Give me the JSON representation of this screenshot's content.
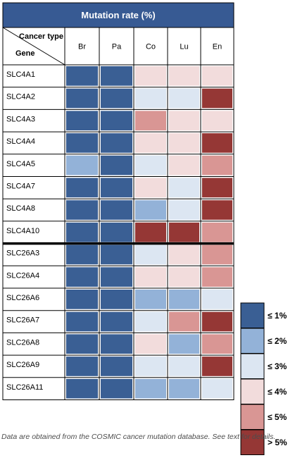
{
  "chart_data": {
    "type": "heatmap",
    "title": "Mutation rate (%)",
    "column_header_label": "Cancer type",
    "row_header_label": "Gene",
    "columns": [
      "Br",
      "Pa",
      "Co",
      "Lu",
      "En"
    ],
    "rows": [
      "SLC4A1",
      "SLC4A2",
      "SLC4A3",
      "SLC4A4",
      "SLC4A5",
      "SLC4A7",
      "SLC4A8",
      "SLC4A10",
      "SLC26A3",
      "SLC26A4",
      "SLC26A6",
      "SLC26A7",
      "SLC26A8",
      "SLC26A9",
      "SLC26A11"
    ],
    "group_separator_after_row": "SLC4A10",
    "categories": [
      "≤ 1%",
      "≤ 2%",
      "≤ 3%",
      "≤ 4%",
      "≤ 5%",
      "> 5%"
    ],
    "category_colors": [
      "#3a5f94",
      "#93b2d8",
      "#dce6f2",
      "#f2dcdc",
      "#d99694",
      "#953735"
    ],
    "values": [
      [
        0,
        0,
        3,
        3,
        3
      ],
      [
        0,
        0,
        2,
        2,
        5
      ],
      [
        0,
        0,
        4,
        3,
        3
      ],
      [
        0,
        0,
        3,
        3,
        5
      ],
      [
        1,
        0,
        2,
        3,
        4
      ],
      [
        0,
        0,
        3,
        2,
        5
      ],
      [
        0,
        0,
        1,
        2,
        5
      ],
      [
        0,
        0,
        5,
        5,
        4
      ],
      [
        0,
        0,
        2,
        3,
        4
      ],
      [
        0,
        0,
        3,
        3,
        4
      ],
      [
        0,
        0,
        1,
        1,
        2
      ],
      [
        0,
        0,
        2,
        4,
        5
      ],
      [
        0,
        0,
        3,
        1,
        4
      ],
      [
        0,
        0,
        2,
        2,
        5
      ],
      [
        0,
        0,
        1,
        1,
        2
      ]
    ],
    "legend_position": "right"
  },
  "caption": "Data are obtained from the COSMIC cancer mutation database. See text for details.",
  "colors": {
    "title_bar": "#375a93",
    "title_text": "#ffffff",
    "grid": "#000000"
  }
}
